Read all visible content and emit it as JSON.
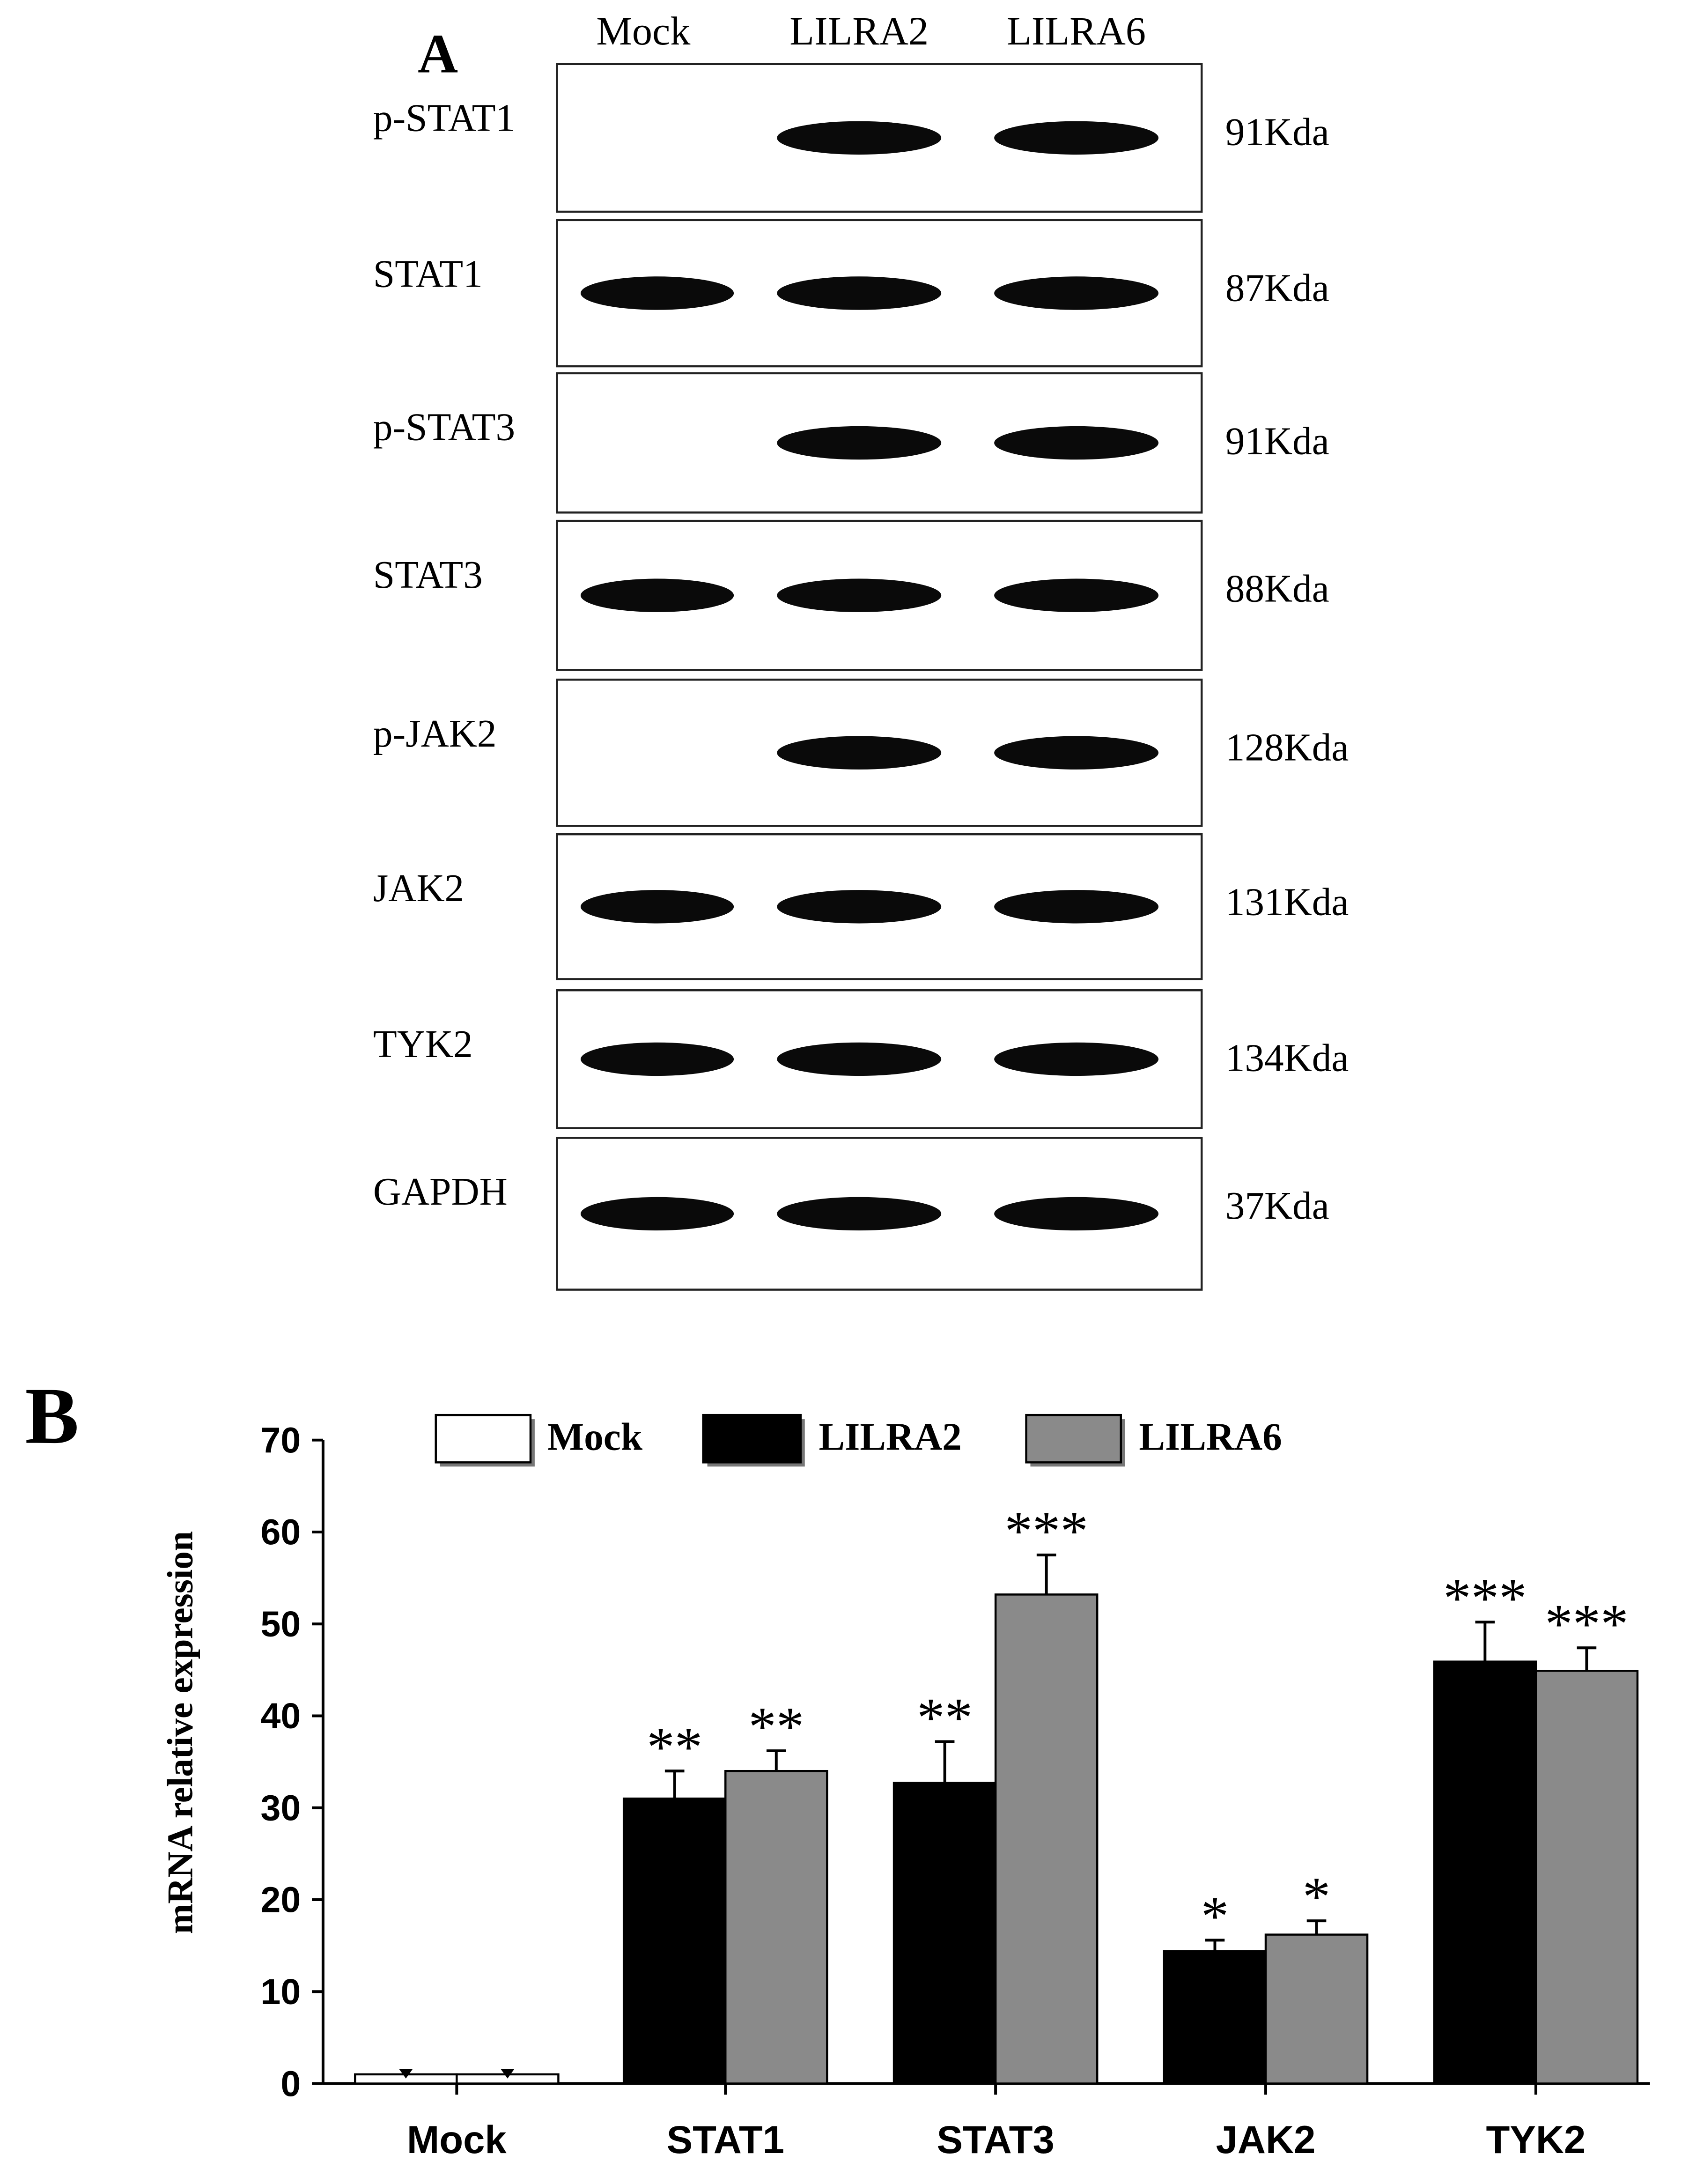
{
  "panel_a": {
    "label": "A",
    "lanes": [
      "Mock",
      "LILRA2",
      "LILRA6"
    ],
    "blots": [
      {
        "name": "p-STAT1",
        "size": "91Kda",
        "bands": [
          0,
          1,
          1
        ]
      },
      {
        "name": "STAT1",
        "size": "87Kda",
        "bands": [
          1,
          1,
          1
        ]
      },
      {
        "name": "p-STAT3",
        "size": "91Kda",
        "bands": [
          0,
          1,
          1
        ]
      },
      {
        "name": "STAT3",
        "size": "88Kda",
        "bands": [
          1,
          1,
          1
        ]
      },
      {
        "name": "p-JAK2",
        "size": "128Kda",
        "bands": [
          0,
          1,
          1
        ]
      },
      {
        "name": "JAK2",
        "size": "131Kda",
        "bands": [
          1,
          1,
          1
        ]
      },
      {
        "name": "TYK2",
        "size": "134Kda",
        "bands": [
          1,
          1,
          1
        ]
      },
      {
        "name": "GAPDH",
        "size": "37Kda",
        "bands": [
          1,
          1,
          1
        ]
      }
    ]
  },
  "panel_b": {
    "label": "B"
  },
  "chart_data": {
    "type": "bar",
    "title": "",
    "xlabel": "",
    "ylabel": "mRNA relative expression",
    "ylim": [
      0,
      70
    ],
    "yticks": [
      0,
      10,
      20,
      30,
      40,
      50,
      60,
      70
    ],
    "categories": [
      "Mock",
      "STAT1",
      "STAT3",
      "JAK2",
      "TYK2"
    ],
    "legend": [
      "Mock",
      "LILRA2",
      "LILRA6"
    ],
    "legend_position": "top",
    "colors": {
      "Mock": "#ffffff",
      "LILRA2": "#000000",
      "LILRA6": "#8a8a8a"
    },
    "bar_groups": [
      [
        {
          "series": "Mock",
          "value": 1
        },
        {
          "series": "Mock",
          "value": 1
        }
      ],
      [
        {
          "series": "LILRA2",
          "value": 31,
          "error": 3,
          "sig": "**"
        },
        {
          "series": "LILRA6",
          "value": 34,
          "error": 2.2,
          "sig": "**"
        }
      ],
      [
        {
          "series": "LILRA2",
          "value": 32.7,
          "error": 4.5,
          "sig": "**"
        },
        {
          "series": "LILRA6",
          "value": 53.2,
          "error": 4.3,
          "sig": "***"
        }
      ],
      [
        {
          "series": "LILRA2",
          "value": 14.4,
          "error": 1.2,
          "sig": "*"
        },
        {
          "series": "LILRA6",
          "value": 16.2,
          "error": 1.5,
          "sig": "*"
        }
      ],
      [
        {
          "series": "LILRA2",
          "value": 45.9,
          "error": 4.3,
          "sig": "***"
        },
        {
          "series": "LILRA6",
          "value": 44.9,
          "error": 2.5,
          "sig": "***"
        }
      ]
    ]
  }
}
